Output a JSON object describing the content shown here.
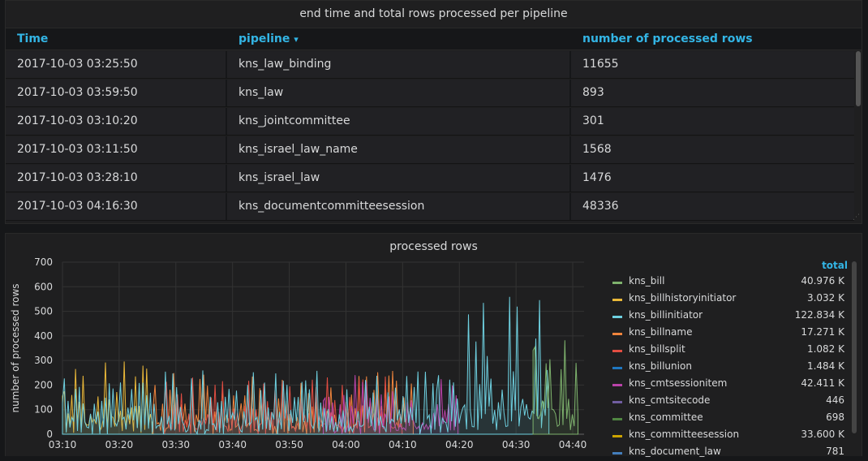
{
  "table_panel": {
    "title": "end time and total rows processed per pipeline",
    "columns": [
      "Time",
      "pipeline",
      "number of processed rows"
    ],
    "sort_arrow": "▾",
    "rows": [
      [
        "2017-10-03 03:25:50",
        "kns_law_binding",
        "11655"
      ],
      [
        "2017-10-03 03:59:50",
        "kns_law",
        "893"
      ],
      [
        "2017-10-03 03:10:20",
        "kns_jointcommittee",
        "301"
      ],
      [
        "2017-10-03 03:11:50",
        "kns_israel_law_name",
        "1568"
      ],
      [
        "2017-10-03 03:28:10",
        "kns_israel_law",
        "1476"
      ],
      [
        "2017-10-03 04:16:30",
        "kns_documentcommitteesession",
        "48336"
      ]
    ]
  },
  "graph_panel": {
    "title": "processed rows",
    "legend_header": "total",
    "legend": [
      {
        "name": "kns_bill",
        "total": "40.976 K",
        "color": "#7eb26d"
      },
      {
        "name": "kns_billhistoryinitiator",
        "total": "3.032 K",
        "color": "#eab839"
      },
      {
        "name": "kns_billinitiator",
        "total": "122.834 K",
        "color": "#6ed0e0"
      },
      {
        "name": "kns_billname",
        "total": "17.271 K",
        "color": "#ef843c"
      },
      {
        "name": "kns_billsplit",
        "total": "1.082 K",
        "color": "#e24d42"
      },
      {
        "name": "kns_billunion",
        "total": "1.484 K",
        "color": "#1f78c1"
      },
      {
        "name": "kns_cmtsessionitem",
        "total": "42.411 K",
        "color": "#ba43a9"
      },
      {
        "name": "kns_cmtsitecode",
        "total": "446",
        "color": "#705da0"
      },
      {
        "name": "kns_committee",
        "total": "698",
        "color": "#508642"
      },
      {
        "name": "kns_committeesession",
        "total": "33.600 K",
        "color": "#cca300"
      },
      {
        "name": "kns_document_law",
        "total": "781",
        "color": "#447ebc"
      }
    ]
  },
  "chart_data": {
    "type": "area",
    "title": "processed rows",
    "ylabel": "number of processed rows",
    "ylim": [
      0,
      700
    ],
    "yticks": [
      0,
      100,
      200,
      300,
      400,
      500,
      600,
      700
    ],
    "xticks": [
      "03:10",
      "03:20",
      "03:30",
      "03:40",
      "03:50",
      "04:00",
      "04:10",
      "04:20",
      "04:30",
      "04:40"
    ],
    "xlim": [
      "03:10",
      "04:42"
    ],
    "grid": true,
    "series": [
      {
        "name": "kns_billhistoryinitiator",
        "color": "#eab839",
        "start": "03:10",
        "end": "03:26",
        "min": 0,
        "max": 300
      },
      {
        "name": "kns_billname",
        "color": "#ef843c",
        "start": "03:26",
        "end": "04:12",
        "min": 0,
        "max": 260
      },
      {
        "name": "kns_billsplit",
        "color": "#e24d42",
        "start": "03:28",
        "end": "04:10",
        "min": 0,
        "max": 240
      },
      {
        "name": "kns_cmtsessionitem",
        "color": "#ba43a9",
        "start": "03:56",
        "end": "04:20",
        "min": 0,
        "max": 250
      },
      {
        "name": "kns_billinitiator",
        "color": "#6ed0e0",
        "start": "03:10",
        "end": "04:36",
        "min": 0,
        "max": 590
      },
      {
        "name": "kns_bill",
        "color": "#7eb26d",
        "start": "04:33",
        "end": "04:41",
        "min": 0,
        "max": 440
      }
    ]
  }
}
